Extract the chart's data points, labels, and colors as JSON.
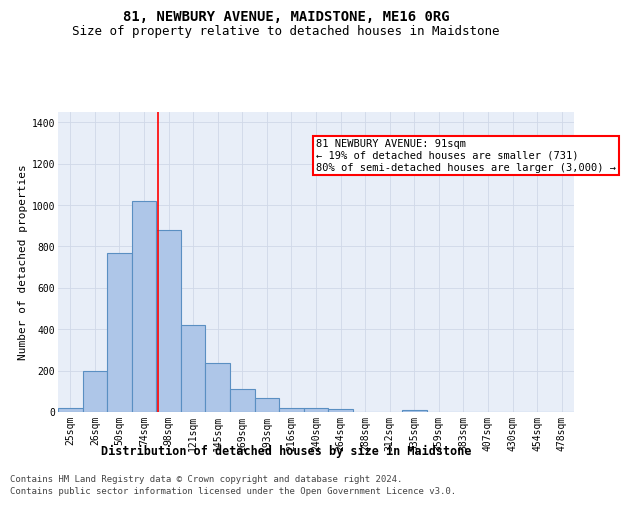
{
  "title": "81, NEWBURY AVENUE, MAIDSTONE, ME16 0RG",
  "subtitle": "Size of property relative to detached houses in Maidstone",
  "xlabel": "Distribution of detached houses by size in Maidstone",
  "ylabel": "Number of detached properties",
  "footer_line1": "Contains HM Land Registry data © Crown copyright and database right 2024.",
  "footer_line2": "Contains public sector information licensed under the Open Government Licence v3.0.",
  "categories": [
    "25sqm",
    "26sqm",
    "50sqm",
    "74sqm",
    "98sqm",
    "121sqm",
    "145sqm",
    "169sqm",
    "193sqm",
    "216sqm",
    "240sqm",
    "264sqm",
    "288sqm",
    "312sqm",
    "335sqm",
    "359sqm",
    "383sqm",
    "407sqm",
    "430sqm",
    "454sqm",
    "478sqm"
  ],
  "bar_values": [
    20,
    200,
    770,
    1020,
    880,
    420,
    235,
    110,
    70,
    20,
    20,
    15,
    0,
    0,
    10,
    0,
    0,
    0,
    0,
    0,
    0
  ],
  "bar_color": "#aec6e8",
  "bar_edge_color": "#5a8fc2",
  "bar_edge_width": 0.8,
  "vline_x": 3.55,
  "vline_color": "red",
  "vline_linewidth": 1.2,
  "annotation_text": "81 NEWBURY AVENUE: 91sqm\n← 19% of detached houses are smaller (731)\n80% of semi-detached houses are larger (3,000) →",
  "annotation_box_color": "white",
  "annotation_box_edge_color": "red",
  "annotation_fontsize": 7.5,
  "ylim": [
    0,
    1450
  ],
  "yticks": [
    0,
    200,
    400,
    600,
    800,
    1000,
    1200,
    1400
  ],
  "grid_color": "#d0d8e8",
  "background_color": "#e8eef8",
  "title_fontsize": 10,
  "subtitle_fontsize": 9,
  "xlabel_fontsize": 8.5,
  "ylabel_fontsize": 8,
  "tick_fontsize": 7,
  "footer_fontsize": 6.5
}
